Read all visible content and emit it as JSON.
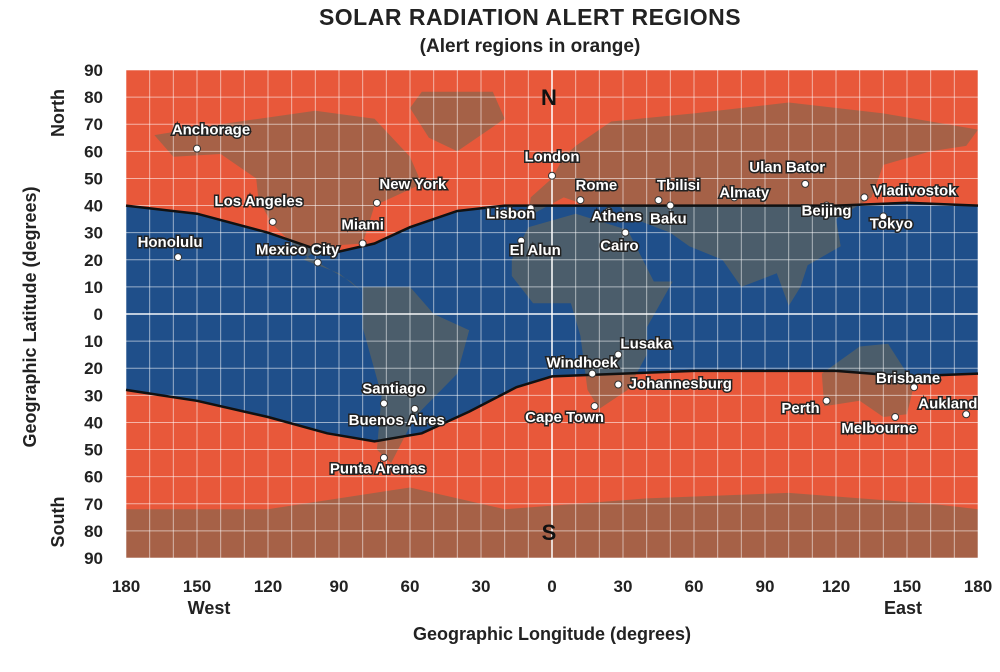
{
  "title": "SOLAR RADIATION ALERT REGIONS",
  "subtitle": "(Alert regions in orange)",
  "colors": {
    "alert_region": "#e8583a",
    "safe_region": "#1f4f8a",
    "land": "#6f6a52",
    "boundary_line": "#111111",
    "grid": "#ffffff"
  },
  "axes": {
    "x_title": "Geographic Longitude (degrees)",
    "y_title": "Geographic Latitude (degrees)",
    "x_ticks": [
      "180",
      "150",
      "120",
      "90",
      "60",
      "30",
      "0",
      "30",
      "60",
      "90",
      "120",
      "150",
      "180"
    ],
    "y_ticks": [
      "90",
      "80",
      "70",
      "60",
      "50",
      "40",
      "30",
      "20",
      "10",
      "0",
      "10",
      "20",
      "30",
      "40",
      "50",
      "60",
      "70",
      "80",
      "90"
    ],
    "west_label": "West",
    "east_label": "East",
    "north_label": "North",
    "south_label": "South",
    "x_range": [
      -180,
      180
    ],
    "y_range": [
      -90,
      90
    ]
  },
  "pole_labels": {
    "north": "N",
    "south": "S"
  },
  "cities": [
    {
      "name": "Anchorage",
      "lon": -150,
      "lat": 61
    },
    {
      "name": "New York",
      "lon": -74,
      "lat": 41
    },
    {
      "name": "Los Angeles",
      "lon": -118,
      "lat": 34
    },
    {
      "name": "Miami",
      "lon": -80,
      "lat": 26
    },
    {
      "name": "Honolulu",
      "lon": -158,
      "lat": 21
    },
    {
      "name": "Mexico City",
      "lon": -99,
      "lat": 19
    },
    {
      "name": "London",
      "lon": 0,
      "lat": 51
    },
    {
      "name": "Rome",
      "lon": 12,
      "lat": 42
    },
    {
      "name": "Tbilisi",
      "lon": 45,
      "lat": 42
    },
    {
      "name": "Ulan Bator",
      "lon": 107,
      "lat": 48
    },
    {
      "name": "Vladivostok",
      "lon": 132,
      "lat": 43
    },
    {
      "name": "Lisbon",
      "lon": -9,
      "lat": 39
    },
    {
      "name": "Athens",
      "lon": 24,
      "lat": 38
    },
    {
      "name": "Baku",
      "lon": 50,
      "lat": 40
    },
    {
      "name": "Almaty",
      "lon": 77,
      "lat": 43
    },
    {
      "name": "Beijing",
      "lon": 116,
      "lat": 40
    },
    {
      "name": "Tokyo",
      "lon": 140,
      "lat": 36
    },
    {
      "name": "Cairo",
      "lon": 31,
      "lat": 30
    },
    {
      "name": "El Alun",
      "lon": -13,
      "lat": 27
    },
    {
      "name": "Windhoek",
      "lon": 17,
      "lat": -22
    },
    {
      "name": "Lusaka",
      "lon": 28,
      "lat": -15
    },
    {
      "name": "Johannesburg",
      "lon": 28,
      "lat": -26
    },
    {
      "name": "Cape Town",
      "lon": 18,
      "lat": -34
    },
    {
      "name": "Santiago",
      "lon": -71,
      "lat": -33
    },
    {
      "name": "Buenos Aires",
      "lon": -58,
      "lat": -35
    },
    {
      "name": "Punta Arenas",
      "lon": -71,
      "lat": -53
    },
    {
      "name": "Perth",
      "lon": 116,
      "lat": -32
    },
    {
      "name": "Brisbane",
      "lon": 153,
      "lat": -27
    },
    {
      "name": "Aukland",
      "lon": 175,
      "lat": -37
    },
    {
      "name": "Melbourne",
      "lon": 145,
      "lat": -38
    }
  ]
}
